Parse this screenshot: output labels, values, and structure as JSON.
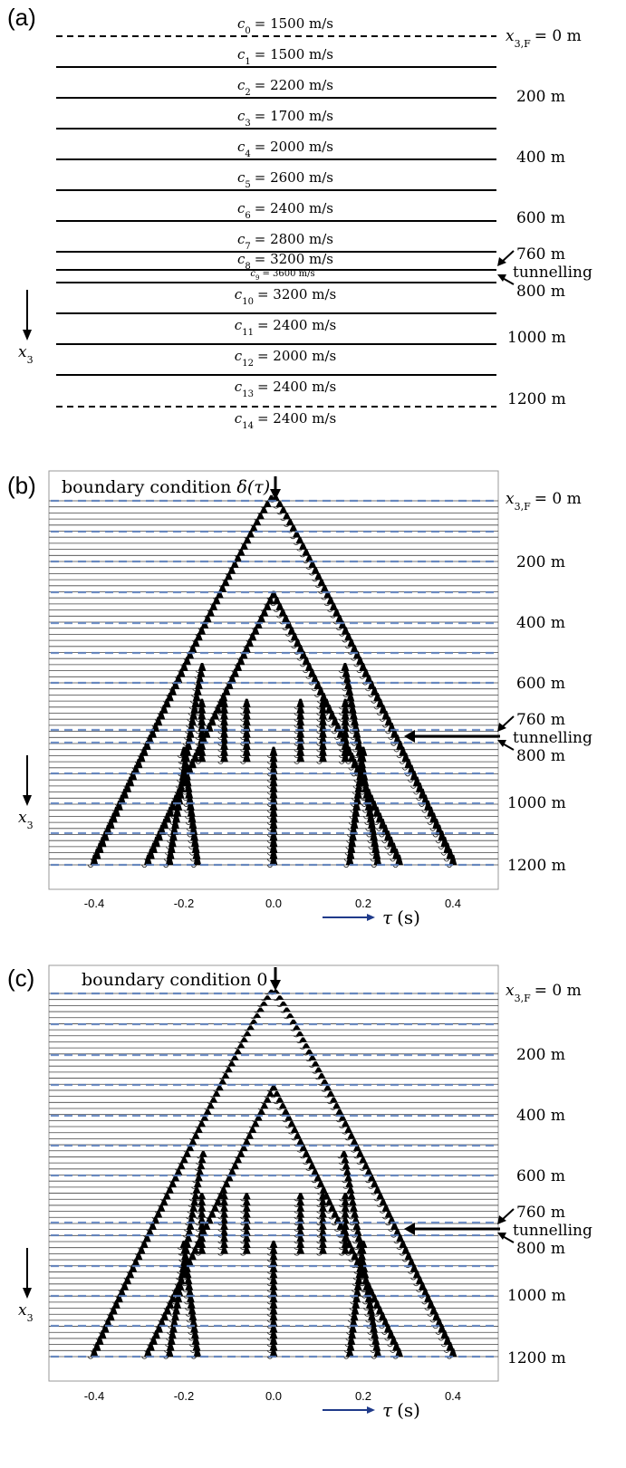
{
  "panel_a": {
    "panel_label": "(a)",
    "layers": [
      {
        "sym": "c",
        "sub": "0",
        "value": "= 1500 m/s"
      },
      {
        "sym": "c",
        "sub": "1",
        "value": "= 1500 m/s"
      },
      {
        "sym": "c",
        "sub": "2",
        "value": "= 2200 m/s"
      },
      {
        "sym": "c",
        "sub": "3",
        "value": "= 1700 m/s"
      },
      {
        "sym": "c",
        "sub": "4",
        "value": "= 2000 m/s"
      },
      {
        "sym": "c",
        "sub": "5",
        "value": "= 2600 m/s"
      },
      {
        "sym": "c",
        "sub": "6",
        "value": "= 2400 m/s"
      },
      {
        "sym": "c",
        "sub": "7",
        "value": "= 2800 m/s"
      },
      {
        "sym": "c",
        "sub": "8",
        "value": "= 3200 m/s"
      },
      {
        "sym": "c",
        "sub": "9",
        "value": "= 3600 m/s"
      },
      {
        "sym": "c",
        "sub": "10",
        "value": "= 3200 m/s"
      },
      {
        "sym": "c",
        "sub": "11",
        "value": "= 2400 m/s"
      },
      {
        "sym": "c",
        "sub": "12",
        "value": "= 2000 m/s"
      },
      {
        "sym": "c",
        "sub": "13",
        "value": "= 2400 m/s"
      },
      {
        "sym": "c",
        "sub": "14",
        "value": "= 2400 m/s"
      }
    ]
  },
  "depth_labels": {
    "surface_sym": "x",
    "surface_sub": "3,F",
    "surface_val": "= 0 m",
    "d200": "200 m",
    "d400": "400 m",
    "d600": "600 m",
    "d760": "760 m",
    "tunnelling": "tunnelling",
    "d800": "800 m",
    "d1000": "1000 m",
    "d1200": "1200 m"
  },
  "axis_var": {
    "sym": "x",
    "sub": "3"
  },
  "panel_b": {
    "panel_label": "(b)",
    "boundary_prefix": "boundary condition ",
    "boundary_expr": "δ(τ)"
  },
  "panel_c": {
    "panel_label": "(c)",
    "boundary_prefix": "boundary condition ",
    "boundary_expr": "0"
  },
  "tau_axis": {
    "ticks": [
      "-0.4",
      "-0.2",
      "0.0",
      "0.2",
      "0.4"
    ],
    "tick_values": [
      -0.4,
      -0.2,
      0.0,
      0.2,
      0.4
    ],
    "label_sym": "τ",
    "label_unit": "(s)",
    "range": [
      -0.5,
      0.5
    ]
  },
  "colors": {
    "interface": "#000000",
    "dashed_interface": "#5b7fbf",
    "trace_line": "#444444",
    "arrow_blue": "#1f3a8a"
  }
}
